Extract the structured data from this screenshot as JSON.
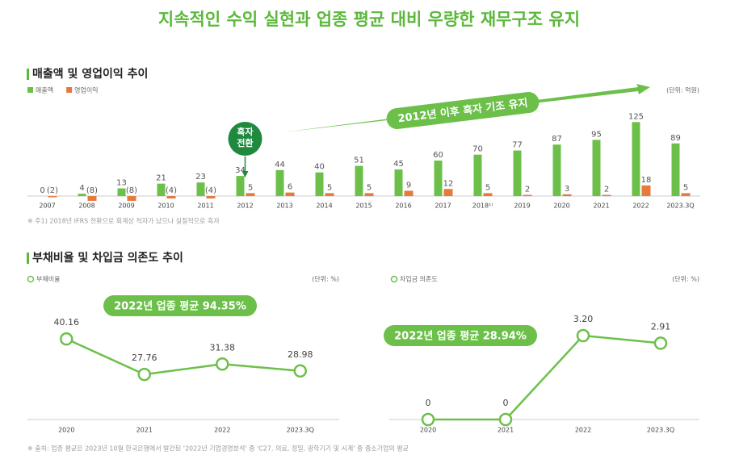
{
  "title": "지속적인 수익 실현과 업종 평균 대비 우량한 재무구조 유지",
  "section2_title": "부채비율 및 차입금 의존도 추이",
  "footnote_bottom": "※ 출처: 업종 평균은 2023년 10월 한국은행에서 발간된 '2022년 기업경영분석' 중 'C27. 의료, 정밀, 광학기기 및 시계' 중 중소기업의 평균",
  "chart_data": [
    {
      "type": "bar",
      "title": "매출액 및 영업이익 추이",
      "unit": "(단위: 억원)",
      "categories": [
        "2007",
        "2008",
        "2009",
        "2010",
        "2011",
        "2012",
        "2013",
        "2014",
        "2015",
        "2016",
        "2017",
        "2018¹⁾",
        "2019",
        "2020",
        "2021",
        "2022",
        "2023.3Q"
      ],
      "series": [
        {
          "name": "매출액",
          "color": "#6cc04a",
          "values": [
            0,
            4,
            13,
            21,
            23,
            34,
            44,
            40,
            51,
            45,
            60,
            70,
            77,
            87,
            95,
            125,
            89
          ]
        },
        {
          "name": "영업이익",
          "color": "#e57a3c",
          "values": [
            -2,
            -8,
            -8,
            -4,
            -4,
            5,
            6,
            5,
            5,
            9,
            12,
            5,
            2,
            3,
            2,
            18,
            5
          ],
          "value_labels": [
            "(2)",
            "(8)",
            "(8)",
            "(4)",
            "(4)",
            "5",
            "6",
            "5",
            "5",
            "9",
            "12",
            "5",
            "2",
            "3",
            "2",
            "18",
            "5"
          ]
        }
      ],
      "ylim": [
        -10,
        135
      ],
      "annotations": [
        "흑자 전환",
        "2012년 이후 흑자 기조 유지"
      ],
      "footnote": "※ 주1) 2018년 IFRS 전환으로 회계상 적자가 났으나 실질적으로 흑자"
    },
    {
      "type": "line",
      "unit": "(단위: %)",
      "categories": [
        "2020",
        "2021",
        "2022",
        "2023.3Q"
      ],
      "series": [
        {
          "name": "부채비율",
          "color": "#6cc04a",
          "values": [
            40.16,
            27.76,
            31.38,
            28.98
          ]
        }
      ],
      "ylim": [
        12,
        45
      ],
      "annotation": "2022년 업종 평균 94.35%"
    },
    {
      "type": "line",
      "unit": "(단위: %)",
      "categories": [
        "2020",
        "2021",
        "2022",
        "2023.3Q"
      ],
      "series": [
        {
          "name": "차입금 의존도",
          "color": "#6cc04a",
          "values": [
            0,
            0,
            3.2,
            2.91
          ],
          "value_labels": [
            "0",
            "0",
            "3.20",
            "2.91"
          ]
        }
      ],
      "ylim": [
        0,
        3.6
      ],
      "annotation": "2022년 업종 평균 28.94%"
    }
  ]
}
